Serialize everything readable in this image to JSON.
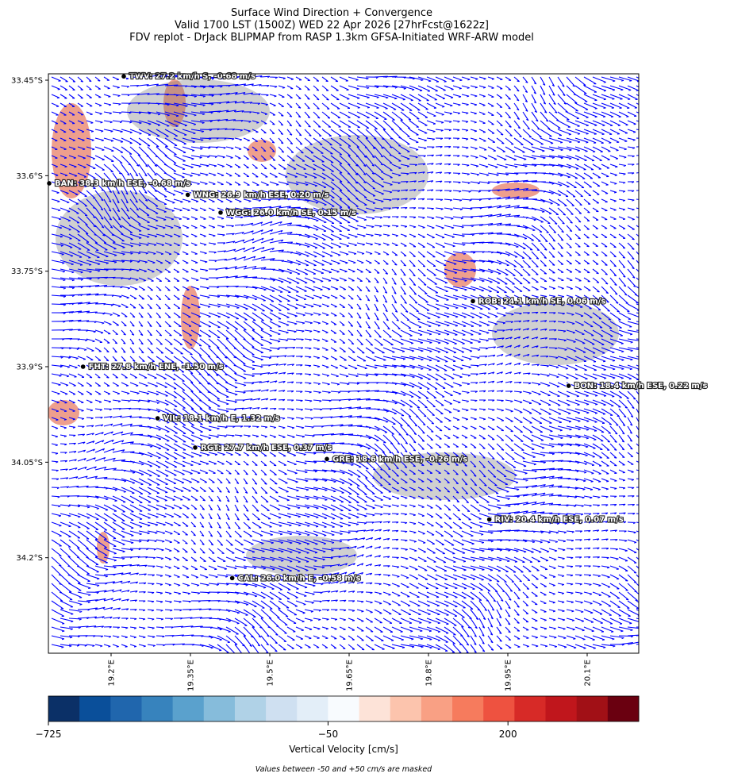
{
  "chart_data": {
    "type": "map",
    "title_lines": [
      "Surface Wind Direction + Convergence",
      "Valid 1700 LST (1500Z) WED 22 Apr 2026 [27hrFcst@1622z]",
      "FDV replot - DrJack BLIPMAP from RASP 1.3km GFSA-Initiated WRF-ARW model"
    ],
    "xlim": [
      19.0815,
      20.1975
    ],
    "ylim": [
      33.44,
      34.35
    ],
    "xticks": [
      {
        "value": 19.2,
        "label": "19.2°E"
      },
      {
        "value": 19.35,
        "label": "19.35°E"
      },
      {
        "value": 19.5,
        "label": "19.5°E"
      },
      {
        "value": 19.65,
        "label": "19.65°E"
      },
      {
        "value": 19.8,
        "label": "19.8°E"
      },
      {
        "value": 19.95,
        "label": "19.95°E"
      },
      {
        "value": 20.1,
        "label": "20.1°E"
      }
    ],
    "yticks": [
      {
        "value": 33.45,
        "label": "33.45°S"
      },
      {
        "value": 33.6,
        "label": "33.6°S"
      },
      {
        "value": 33.75,
        "label": "33.75°S"
      },
      {
        "value": 33.9,
        "label": "33.9°S"
      },
      {
        "value": 34.05,
        "label": "34.05°S"
      },
      {
        "value": 34.2,
        "label": "34.2°S"
      }
    ],
    "stations": [
      {
        "label": "TWV: 27.2 km/h S, -0.68 m/s",
        "lon": 19.224,
        "lat": 33.444
      },
      {
        "label": "BAN: 38.3 km/h ESE, -0.68 m/s",
        "lon": 19.083,
        "lat": 33.612
      },
      {
        "label": "WNG: 26.9 km/h ESE, 0.20 m/s",
        "lon": 19.345,
        "lat": 33.63
      },
      {
        "label": "WGG: 26.0 km/h SE, 0.15 m/s",
        "lon": 19.407,
        "lat": 33.658
      },
      {
        "label": "ROB: 24.1 km/h SE, 0.06 m/s",
        "lon": 19.884,
        "lat": 33.797
      },
      {
        "label": "FHT: 27.8 km/h ENE, -1.50 m/s",
        "lon": 19.147,
        "lat": 33.9
      },
      {
        "label": "BON: 18.4 km/h ESE, 0.22 m/s",
        "lon": 20.065,
        "lat": 33.93
      },
      {
        "label": "VIL: 18.1 km/h E, 1.32 m/s",
        "lon": 19.288,
        "lat": 33.981
      },
      {
        "label": "RGT: 27.7 km/h ESE, 0.37 m/s",
        "lon": 19.359,
        "lat": 34.027
      },
      {
        "label": "GRE: 18.6 km/h ESE, -0.26 m/s",
        "lon": 19.608,
        "lat": 34.045
      },
      {
        "label": "RIV: 20.4 km/h ESE, 0.07 m/s",
        "lon": 19.915,
        "lat": 34.14
      },
      {
        "label": "CAL: 26.0 km/h E, -0.58 m/s",
        "lon": 19.429,
        "lat": 34.232
      }
    ],
    "colorbar": {
      "label": "Vertical Velocity [cm/s]",
      "colors": [
        "#0b3067",
        "#0a4f9a",
        "#2066ad",
        "#3783bd",
        "#5aa1cd",
        "#86bcdb",
        "#b0d2e7",
        "#cfe0f1",
        "#e3eef8",
        "#f8fbfe",
        "#fde3d8",
        "#fcc4ad",
        "#f9a084",
        "#f67b5d",
        "#ee5240",
        "#d72a27",
        "#c0161c",
        "#a11016",
        "#6a0010"
      ],
      "boundaries": [
        -725,
        -650,
        -575,
        -500,
        -425,
        -350,
        -275,
        -200,
        -125,
        -50,
        -7,
        36,
        80,
        123,
        166,
        209,
        252,
        295,
        338,
        381
      ],
      "ticks": [
        {
          "value": -725,
          "label": "−725"
        },
        {
          "value": -50,
          "label": "−50"
        },
        200
      ]
    },
    "note": "Values between -50 and +50 cm/s are masked"
  }
}
